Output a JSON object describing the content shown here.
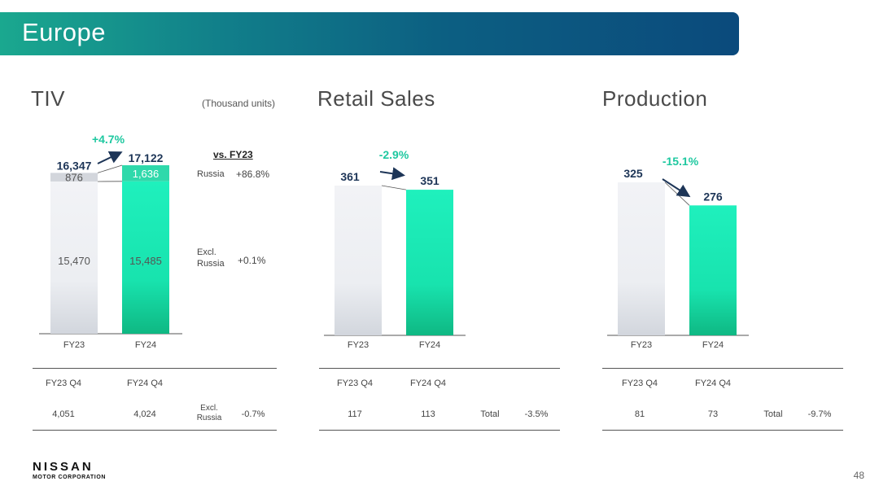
{
  "banner": {
    "title": "Europe"
  },
  "colors": {
    "fy23_bar": "#eaecf0",
    "fy24_bar": "#1de9b6",
    "change": "#1ec8a0",
    "arrow": "#1d3557"
  },
  "tiv": {
    "title": "TIV",
    "unit_note": "(Thousand units)",
    "vs_heading": "vs. FY23",
    "vs_rows": [
      {
        "label": "Russia",
        "value": "+86.8%"
      },
      {
        "label": "Excl.\nRussia",
        "value": "+0.1%"
      }
    ],
    "table": {
      "headers": [
        "FY23 Q4",
        "FY24 Q4"
      ],
      "values": [
        "4,051",
        "4,024"
      ],
      "change_label": "Excl.\nRussia",
      "change_value": "-0.7%"
    }
  },
  "retail": {
    "title": "Retail Sales",
    "table": {
      "headers": [
        "FY23 Q4",
        "FY24 Q4"
      ],
      "values": [
        "117",
        "113"
      ],
      "change_label": "Total",
      "change_value": "-3.5%"
    }
  },
  "production": {
    "title": "Production",
    "table": {
      "headers": [
        "FY23 Q4",
        "FY24 Q4"
      ],
      "values": [
        "81",
        "73"
      ],
      "change_label": "Total",
      "change_value": "-9.7%"
    }
  },
  "chart_data": [
    {
      "type": "bar",
      "stacked": true,
      "categories": [
        "FY23",
        "FY24"
      ],
      "series": [
        {
          "name": "",
          "values": [
            15470,
            15485
          ],
          "labels": [
            "15,470",
            "15,485"
          ]
        },
        {
          "name": "Russia",
          "values": [
            876,
            1636
          ],
          "labels": [
            "876",
            "1,636"
          ]
        }
      ],
      "totals": [
        16347,
        17122
      ],
      "total_labels": [
        "16,347",
        "17,122"
      ],
      "change_label": "+4.7%",
      "title": "TIV",
      "ylabel": "(Thousand units)"
    },
    {
      "type": "bar",
      "categories": [
        "FY23",
        "FY24"
      ],
      "values": [
        361,
        351
      ],
      "value_labels": [
        "361",
        "351"
      ],
      "change_label": "-2.9%",
      "title": "Retail Sales"
    },
    {
      "type": "bar",
      "categories": [
        "FY23",
        "FY24"
      ],
      "values": [
        325,
        276
      ],
      "value_labels": [
        "325",
        "276"
      ],
      "change_label": "-15.1%",
      "title": "Production"
    }
  ],
  "footer": {
    "logo_main": "NISSAN",
    "logo_sub": "MOTOR CORPORATION",
    "page_number": "48"
  }
}
